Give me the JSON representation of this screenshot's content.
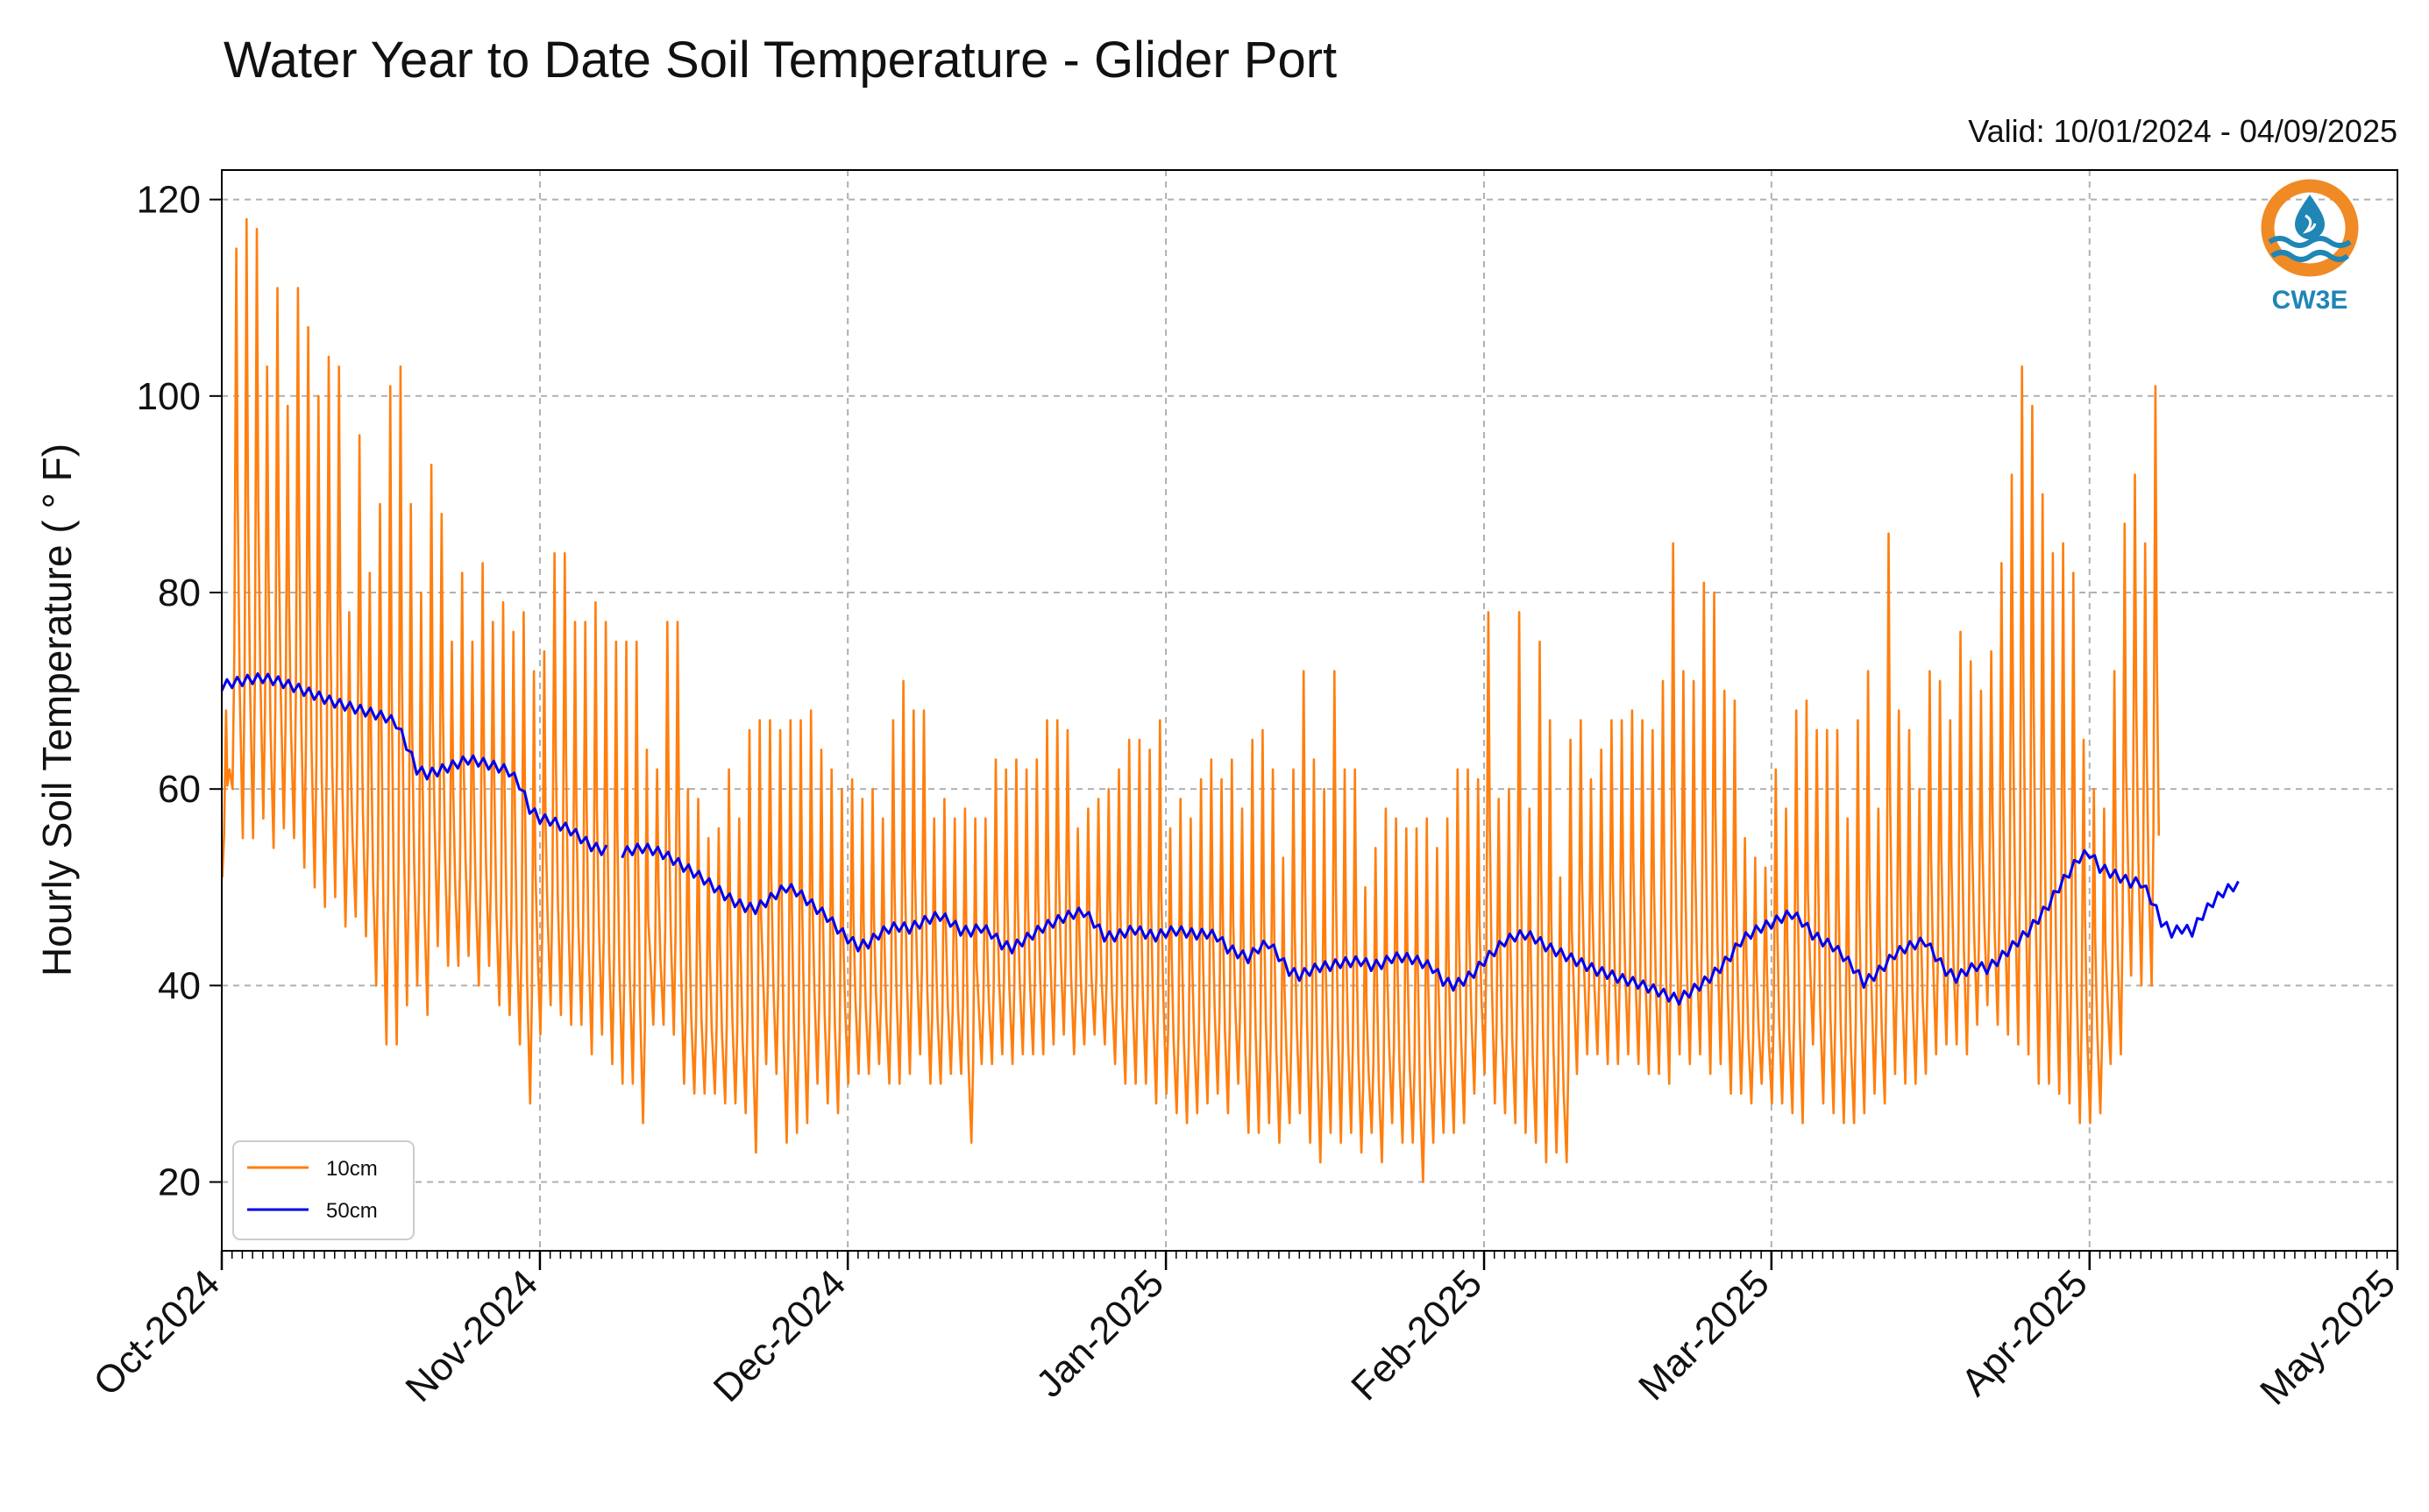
{
  "chart_data": {
    "type": "line",
    "title": "Water Year to Date Soil Temperature - Glider Port",
    "subtitle": "Valid: 10/01/2024 - 04/09/2025",
    "xlabel": "",
    "ylabel": "Hourly Soil Temperature ( ° F)",
    "ylim": [
      13,
      123
    ],
    "yticks": [
      20,
      40,
      60,
      80,
      100,
      120
    ],
    "xlim": [
      "2024-10-01",
      "2025-05-01"
    ],
    "xticks": [
      "Oct-2024",
      "Nov-2024",
      "Dec-2024",
      "Jan-2025",
      "Feb-2025",
      "Mar-2025",
      "Apr-2025",
      "May-2025"
    ],
    "grid": true,
    "legend_position": "lower-left",
    "colors": {
      "10cm": "#ff7f0e",
      "50cm": "#0000ee"
    },
    "series": [
      {
        "name": "10cm",
        "kind": "daily_min_max",
        "start_date": "2024-10-01",
        "daily_max": [
          68,
          115,
          118,
          117,
          103,
          111,
          99,
          111,
          107,
          100,
          104,
          103,
          78,
          96,
          82,
          89,
          101,
          103,
          89,
          80,
          93,
          88,
          75,
          82,
          75,
          83,
          77,
          79,
          76,
          78,
          72,
          74,
          84,
          84,
          77,
          77,
          79,
          77,
          75,
          75,
          75,
          64,
          62,
          77,
          77,
          60,
          59,
          55,
          56,
          62,
          57,
          66,
          67,
          67,
          66,
          67,
          67,
          68,
          64,
          62,
          60,
          61,
          59,
          60,
          57,
          67,
          71,
          68,
          68,
          57,
          59,
          57,
          58,
          57,
          57,
          63,
          62,
          63,
          62,
          63,
          67,
          67,
          66,
          56,
          58,
          59,
          60,
          62,
          65,
          65,
          64,
          67,
          56,
          59,
          57,
          61,
          63,
          61,
          63,
          58,
          65,
          66,
          62,
          53,
          62,
          72,
          63,
          60,
          72,
          62,
          62,
          50,
          54,
          58,
          57,
          56,
          56,
          57,
          54,
          57,
          62,
          62,
          61,
          78,
          59,
          60,
          78,
          58,
          75,
          67,
          51,
          65,
          67,
          61,
          64,
          67,
          67,
          68,
          67,
          66,
          71,
          85,
          72,
          71,
          81,
          80,
          70,
          69,
          55,
          53,
          52,
          62,
          58,
          68,
          69,
          66,
          66,
          66,
          57,
          67,
          72,
          58,
          86,
          68,
          66,
          60,
          72,
          71,
          67,
          76,
          73,
          70,
          74,
          83,
          92,
          103,
          99,
          90,
          84,
          85,
          82,
          65,
          60,
          58,
          72,
          87,
          92,
          85,
          101
        ],
        "daily_min": [
          51,
          60,
          55,
          55,
          57,
          54,
          56,
          55,
          52,
          50,
          48,
          49,
          46,
          47,
          45,
          40,
          34,
          34,
          38,
          40,
          37,
          44,
          42,
          42,
          43,
          40,
          42,
          38,
          37,
          34,
          28,
          35,
          38,
          37,
          36,
          36,
          33,
          35,
          32,
          30,
          30,
          26,
          36,
          36,
          35,
          30,
          29,
          29,
          29,
          28,
          28,
          27,
          23,
          32,
          31,
          24,
          25,
          26,
          30,
          28,
          27,
          30,
          31,
          31,
          32,
          30,
          30,
          31,
          33,
          30,
          30,
          31,
          31,
          24,
          32,
          32,
          33,
          32,
          33,
          33,
          33,
          34,
          35,
          33,
          34,
          35,
          34,
          32,
          30,
          30,
          30,
          28,
          29,
          27,
          26,
          27,
          28,
          29,
          27,
          30,
          25,
          25,
          26,
          24,
          26,
          27,
          24,
          22,
          25,
          24,
          25,
          23,
          25,
          22,
          26,
          24,
          24,
          20,
          24,
          25,
          25,
          26,
          29,
          31,
          28,
          27,
          26,
          25,
          24,
          22,
          23,
          22,
          31,
          33,
          33,
          32,
          32,
          33,
          32,
          31,
          31,
          30,
          33,
          32,
          33,
          31,
          32,
          29,
          29,
          28,
          30,
          28,
          28,
          27,
          26,
          34,
          28,
          27,
          26,
          26,
          27,
          29,
          28,
          31,
          30,
          30,
          31,
          33,
          34,
          34,
          33,
          36,
          38,
          36,
          35,
          34,
          33,
          30,
          30,
          29,
          28,
          26,
          26,
          27,
          32,
          33,
          41,
          40,
          40
        ]
      },
      {
        "name": "50cm",
        "kind": "daily_mean",
        "start_date": "2024-10-01",
        "gaps": [
          "2024-11-08"
        ],
        "values": [
          70.5,
          70.8,
          71.0,
          71.2,
          71.3,
          71.1,
          70.8,
          70.4,
          70.0,
          69.6,
          69.2,
          68.8,
          68.5,
          68.2,
          67.9,
          67.6,
          67.3,
          66.7,
          64.5,
          62.0,
          61.5,
          61.8,
          62.2,
          62.6,
          63.0,
          62.8,
          62.5,
          62.2,
          61.8,
          60.5,
          58.0,
          57.0,
          56.8,
          56.3,
          55.8,
          55.0,
          54.2,
          53.8,
          null,
          53.5,
          53.8,
          54.0,
          53.8,
          53.4,
          52.8,
          52.1,
          51.5,
          50.8,
          50.0,
          49.2,
          48.5,
          48.0,
          47.8,
          48.5,
          49.3,
          50.0,
          49.6,
          48.7,
          47.8,
          47.0,
          45.8,
          44.8,
          44.0,
          44.3,
          45.2,
          45.8,
          46.0,
          45.8,
          46.3,
          46.8,
          47.1,
          46.5,
          45.6,
          45.5,
          45.9,
          45.3,
          44.2,
          43.8,
          44.5,
          45.2,
          45.9,
          46.4,
          46.9,
          47.3,
          47.5,
          46.4,
          45.0,
          45.0,
          45.4,
          45.7,
          45.3,
          45.0,
          45.4,
          45.6,
          45.4,
          45.2,
          45.3,
          45.0,
          43.8,
          43.3,
          42.8,
          43.8,
          44.3,
          43.0,
          41.5,
          41.0,
          41.5,
          41.9,
          42.0,
          42.3,
          42.4,
          42.5,
          42.0,
          42.2,
          42.8,
          42.9,
          42.7,
          42.3,
          41.8,
          40.5,
          40.0,
          40.5,
          41.3,
          42.5,
          43.5,
          44.5,
          45.0,
          45.2,
          44.8,
          44.0,
          43.5,
          43.0,
          42.5,
          42.0,
          41.5,
          41.2,
          40.8,
          40.5,
          40.2,
          39.8,
          39.4,
          38.9,
          38.6,
          39.3,
          40.0,
          40.8,
          41.8,
          43.0,
          44.5,
          45.3,
          45.9,
          46.3,
          46.9,
          47.3,
          46.5,
          45.2,
          44.5,
          44.0,
          43.0,
          41.8,
          40.3,
          41.0,
          42.0,
          43.2,
          43.8,
          44.2,
          44.5,
          43.0,
          41.5,
          40.8,
          41.5,
          42.0,
          41.7,
          42.5,
          43.5,
          44.5,
          45.5,
          46.8,
          48.2,
          50.0,
          51.5,
          53.0,
          53.5,
          52.0,
          51.5,
          51.0,
          50.5,
          50.5,
          48.8,
          46.5,
          45.4,
          45.8,
          45.5,
          47.2,
          48.5,
          49.5,
          50.1
        ]
      }
    ],
    "logo": {
      "text": "CW3E",
      "ring_color": "#f08a24",
      "wave_color": "#1f86b6"
    }
  }
}
